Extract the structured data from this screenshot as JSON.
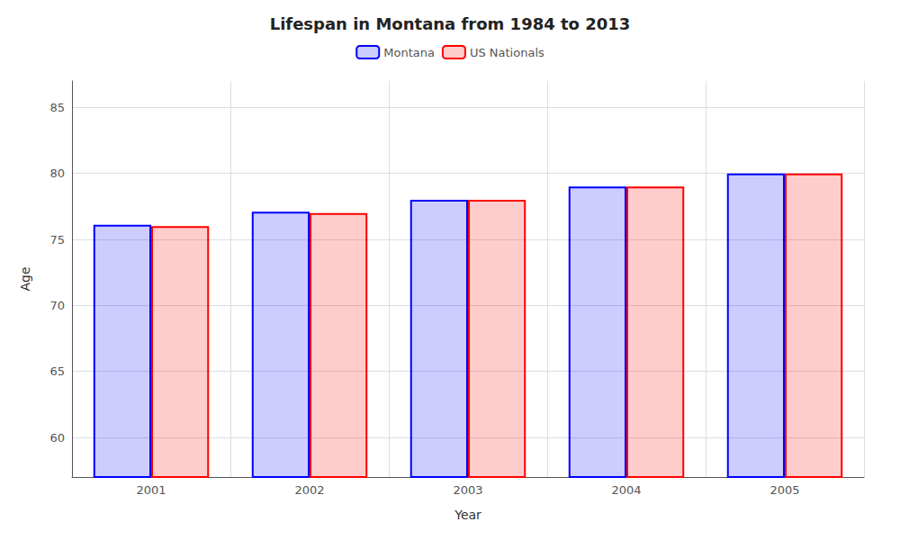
{
  "chart_data": {
    "type": "bar",
    "title": "Lifespan in Montana from 1984 to 2013",
    "xlabel": "Year",
    "ylabel": "Age",
    "categories": [
      "2001",
      "2002",
      "2003",
      "2004",
      "2005"
    ],
    "series": [
      {
        "name": "Montana",
        "color": "#0000ff",
        "values": [
          76.1,
          77.1,
          78.0,
          79.0,
          80.0
        ]
      },
      {
        "name": "US Nationals",
        "color": "#ff0000",
        "values": [
          76.0,
          77.0,
          78.0,
          79.0,
          80.0
        ]
      }
    ],
    "ylim": [
      57,
      87
    ],
    "yticks": [
      60,
      65,
      70,
      75,
      80,
      85
    ],
    "grid": true,
    "legend": "top"
  }
}
